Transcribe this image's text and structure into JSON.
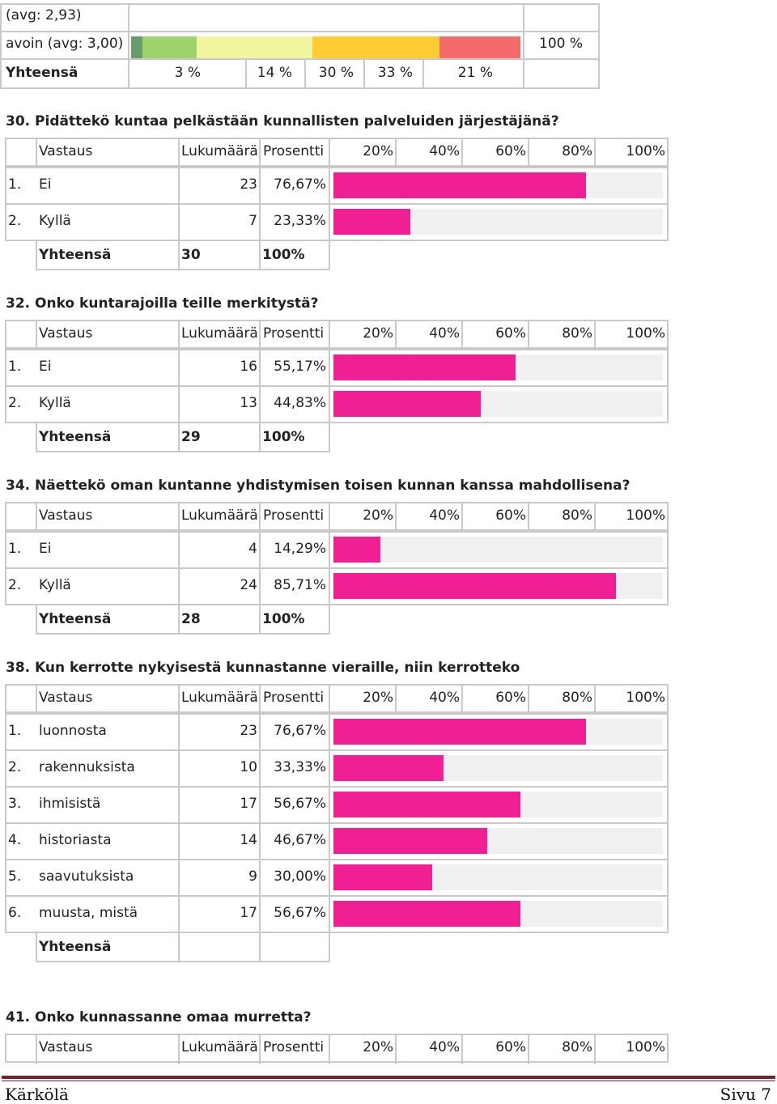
{
  "top_table": {
    "row1_label": "(avg: 2,93)",
    "row2_label": "avoin (avg: 3,00)",
    "row2_total": "100 %",
    "row3_label": "Yhteensä",
    "percents": [
      "3 %",
      "14 %",
      "30 %",
      "33 %",
      "21 %"
    ],
    "segment_values": [
      3,
      14,
      30,
      33,
      21
    ],
    "segment_colors": [
      "#6a9b6a",
      "#9ed26a",
      "#f2f6a0",
      "#ffcc33",
      "#f56a6a"
    ]
  },
  "header": {
    "col_answer": "Vastaus",
    "col_count": "Lukumäärä",
    "col_percent": "Prosentti",
    "ticks": [
      "20%",
      "40%",
      "60%",
      "80%",
      "100%"
    ]
  },
  "bar_color": "#f01f93",
  "questions": [
    {
      "title": "30. Pidättekö kuntaa pelkästään kunnallisten palveluiden järjestäjänä?",
      "rows": [
        {
          "num": "1.",
          "label": "Ei",
          "count": "23",
          "percent": "76,67%",
          "value": 76.67
        },
        {
          "num": "2.",
          "label": "Kyllä",
          "count": "7",
          "percent": "23,33%",
          "value": 23.33
        }
      ],
      "total": {
        "label": "Yhteensä",
        "count": "30",
        "percent": "100%"
      }
    },
    {
      "title": "32. Onko kuntarajoilla teille merkitystä?",
      "rows": [
        {
          "num": "1.",
          "label": "Ei",
          "count": "16",
          "percent": "55,17%",
          "value": 55.17
        },
        {
          "num": "2.",
          "label": "Kyllä",
          "count": "13",
          "percent": "44,83%",
          "value": 44.83
        }
      ],
      "total": {
        "label": "Yhteensä",
        "count": "29",
        "percent": "100%"
      }
    },
    {
      "title": "34. Näettekö oman kuntanne yhdistymisen toisen kunnan kanssa mahdollisena?",
      "rows": [
        {
          "num": "1.",
          "label": "Ei",
          "count": "4",
          "percent": "14,29%",
          "value": 14.29
        },
        {
          "num": "2.",
          "label": "Kyllä",
          "count": "24",
          "percent": "85,71%",
          "value": 85.71
        }
      ],
      "total": {
        "label": "Yhteensä",
        "count": "28",
        "percent": "100%"
      }
    },
    {
      "title": "38. Kun kerrotte nykyisestä kunnastanne vieraille, niin kerrotteko",
      "rows": [
        {
          "num": "1.",
          "label": "luonnosta",
          "count": "23",
          "percent": "76,67%",
          "value": 76.67
        },
        {
          "num": "2.",
          "label": "rakennuksista",
          "count": "10",
          "percent": "33,33%",
          "value": 33.33
        },
        {
          "num": "3.",
          "label": "ihmisistä",
          "count": "17",
          "percent": "56,67%",
          "value": 56.67
        },
        {
          "num": "4.",
          "label": "historiasta",
          "count": "14",
          "percent": "46,67%",
          "value": 46.67
        },
        {
          "num": "5.",
          "label": "saavutuksista",
          "count": "9",
          "percent": "30,00%",
          "value": 30.0
        },
        {
          "num": "6.",
          "label": "muusta, mistä",
          "count": "17",
          "percent": "56,67%",
          "value": 56.67
        }
      ],
      "total": {
        "label": "Yhteensä",
        "count": "",
        "percent": ""
      }
    },
    {
      "title": "41. Onko kunnassanne omaa murretta?",
      "rows": [],
      "total": null
    }
  ],
  "footer": {
    "left": "Kärkölä",
    "right": "Sivu 7"
  }
}
